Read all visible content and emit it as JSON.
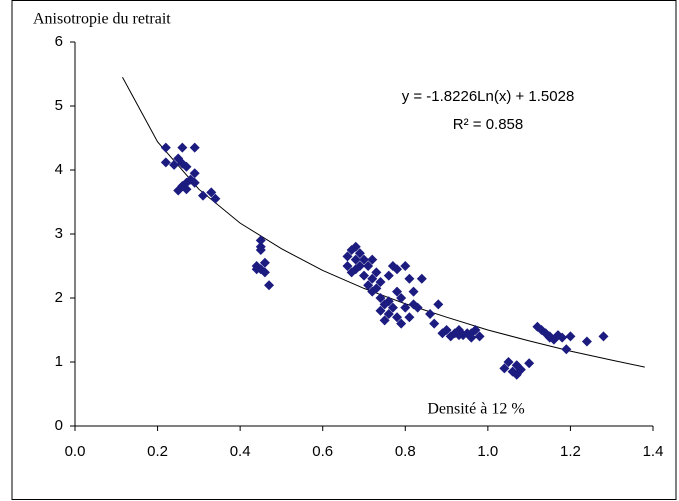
{
  "chart_data": {
    "type": "scatter",
    "title": "Anisotropie du retrait",
    "annotations": [
      "y = -1.8226Ln(x) + 1.5028",
      "R² = 0.858",
      "Densité à 12 %"
    ],
    "xlim": [
      0,
      1.4
    ],
    "ylim": [
      0,
      6
    ],
    "xticks": [
      {
        "value": 0,
        "label": "0.0"
      },
      0.2,
      0.4,
      0.6,
      0.8,
      {
        "value": 1,
        "label": "1.0"
      },
      1.2,
      1.4
    ],
    "yticks": [
      0,
      1,
      2,
      3,
      4,
      5,
      6
    ],
    "grid": false,
    "series": [
      {
        "color": "#1c1c80",
        "x": [
          0.22,
          0.22,
          0.24,
          0.25,
          0.26,
          0.26,
          0.25,
          0.26,
          0.27,
          0.27,
          0.28,
          0.29,
          0.29,
          0.29,
          0.31,
          0.33,
          0.34,
          0.27,
          0.45,
          0.45,
          0.44,
          0.45,
          0.46,
          0.46,
          0.47,
          0.45,
          0.44,
          0.66,
          0.66,
          0.67,
          0.67,
          0.68,
          0.68,
          0.69,
          0.69,
          0.7,
          0.7,
          0.71,
          0.71,
          0.72,
          0.72,
          0.73,
          0.73,
          0.74,
          0.74,
          0.75,
          0.75,
          0.76,
          0.76,
          0.77,
          0.77,
          0.78,
          0.78,
          0.79,
          0.79,
          0.8,
          0.8,
          0.81,
          0.81,
          0.82,
          0.82,
          0.83,
          0.84,
          0.86,
          0.87,
          0.88,
          0.76,
          0.78,
          0.74,
          0.68,
          0.72,
          0.89,
          0.9,
          0.91,
          0.92,
          0.93,
          0.94,
          0.95,
          0.96,
          0.97,
          0.98,
          0.93,
          0.96,
          1.04,
          1.05,
          1.06,
          1.07,
          1.07,
          1.08,
          1.1,
          1.12,
          1.13,
          1.14,
          1.15,
          1.16,
          1.17,
          1.18,
          1.19,
          1.2,
          1.24,
          1.28,
          1.15
        ],
        "values": [
          4.35,
          4.12,
          4.08,
          4.18,
          4.35,
          4.1,
          3.68,
          3.75,
          3.8,
          3.7,
          3.85,
          3.95,
          4.35,
          3.8,
          3.6,
          3.65,
          3.55,
          4.05,
          2.9,
          2.8,
          2.5,
          2.45,
          2.55,
          2.4,
          2.2,
          2.75,
          2.45,
          2.65,
          2.5,
          2.75,
          2.4,
          2.8,
          2.6,
          2.5,
          2.7,
          2.35,
          2.6,
          2.2,
          2.5,
          2.3,
          2.1,
          2.4,
          2.15,
          2.0,
          2.25,
          1.65,
          1.9,
          2.35,
          1.75,
          2.5,
          1.85,
          2.1,
          1.7,
          2.0,
          1.6,
          2.5,
          1.85,
          2.3,
          1.7,
          2.1,
          1.9,
          1.85,
          2.3,
          1.75,
          1.6,
          1.9,
          1.95,
          2.45,
          1.8,
          2.45,
          2.6,
          1.45,
          1.5,
          1.4,
          1.45,
          1.5,
          1.42,
          1.45,
          1.38,
          1.5,
          1.4,
          1.42,
          1.45,
          0.9,
          1.0,
          0.85,
          0.95,
          0.8,
          0.88,
          0.98,
          1.55,
          1.5,
          1.45,
          1.4,
          1.35,
          1.42,
          1.38,
          1.2,
          1.4,
          1.32,
          1.4,
          1.38
        ]
      }
    ],
    "trendline": {
      "color": "#000000",
      "x": [
        0.115,
        0.2,
        0.3,
        0.4,
        0.5,
        0.6,
        0.7,
        0.8,
        0.9,
        1.0,
        1.1,
        1.2,
        1.3,
        1.38
      ],
      "values": [
        5.45,
        4.44,
        3.7,
        3.17,
        2.77,
        2.43,
        2.15,
        1.91,
        1.7,
        1.5,
        1.33,
        1.17,
        1.03,
        0.92
      ]
    }
  }
}
